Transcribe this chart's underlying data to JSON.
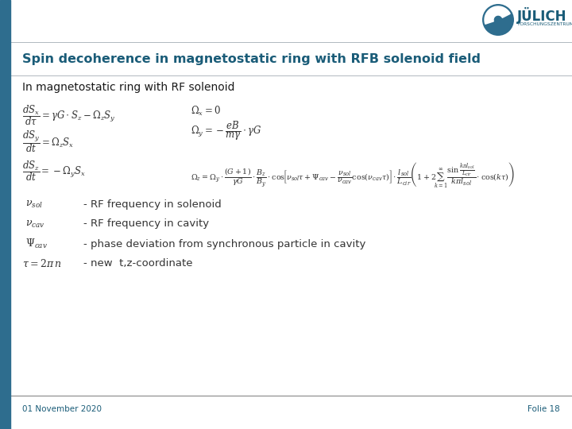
{
  "title": "Spin decoherence in magnetostatic ring with RFB solenoid field",
  "subtitle": "In magnetostatic ring with RF solenoid",
  "bg_color": "#ffffff",
  "title_color": "#1a5c78",
  "subtitle_color": "#1a1a1a",
  "left_bar_color": "#2e6d8e",
  "footer_left": "01 November 2020",
  "footer_right": "Folie 18",
  "footer_color": "#1a5c78",
  "eq1": "$\\dfrac{dS_x}{d\\tau} = \\gamma G \\cdot S_z - \\Omega_z S_y$",
  "eq2": "$\\dfrac{dS_y}{dt} = \\Omega_z S_x$",
  "eq3": "$\\dfrac{dS_z}{dt} = -\\Omega_y S_x$",
  "eq_omx": "$\\Omega_x = 0$",
  "eq_omy": "$\\Omega_y = -\\dfrac{eB}{m\\gamma}\\cdot\\gamma G$",
  "eq_omz": "$\\Omega_z = \\Omega_y \\cdot \\dfrac{(G+1)}{\\gamma G} \\cdot \\dfrac{B_z}{B_y} \\cdot \\mathrm{cos}\\!\\left[\\nu_{sol}\\tau + \\Psi_{cav} - \\dfrac{\\nu_{sol}}{\\nu_{cav}}\\mathrm{cos}(\\nu_{cav}\\tau)\\right] \\cdot \\dfrac{l_{sol}}{L_{cir}} \\left(1 + 2\\!\\sum_{k=1}^{\\infty}\\dfrac{\\sin\\frac{k\\pi l_{sol}}{L_{cir}}}{k\\pi l_{sol}} \\cdot \\mathrm{cos}(k\\tau)\\right)$",
  "leg1_sym": "$\\nu_{sol}$",
  "leg1_txt": "- RF frequency in solenoid",
  "leg2_sym": "$\\nu_{cav}$",
  "leg2_txt": "- RF frequency in cavity",
  "leg3_sym": "$\\Psi_{cav}$",
  "leg3_txt": "- phase deviation from synchronous particle in cavity",
  "leg4_sym": "$\\tau = 2\\pi\\, n$",
  "leg4_txt": "- new  t,z-coordinate",
  "julich_text": "JÜLICH",
  "julich_sub": "FORSCHUNGSZENTRUM"
}
